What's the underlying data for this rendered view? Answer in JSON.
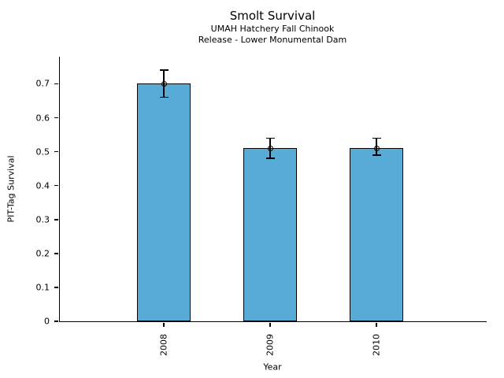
{
  "figure": {
    "background": "#ffffff"
  },
  "chart_data": {
    "type": "bar",
    "title": "Smolt Survival",
    "subtitle1": "UMAH Hatchery Fall Chinook",
    "subtitle2": "Release - Lower Monumental Dam",
    "xlabel": "Year",
    "ylabel": "PIT-Tag Survival",
    "categories": [
      "2008",
      "2009",
      "2010"
    ],
    "values": [
      0.7,
      0.51,
      0.51
    ],
    "error_low": [
      0.66,
      0.48,
      0.49
    ],
    "error_high": [
      0.74,
      0.54,
      0.54
    ],
    "yticks": [
      0,
      0.1,
      0.2,
      0.3,
      0.4,
      0.5,
      0.6,
      0.7
    ],
    "ytick_labels": [
      "0",
      "0.1",
      "0.2",
      "0.3",
      "0.4",
      "0.5",
      "0.6",
      "0.7"
    ],
    "ylim": [
      0,
      0.78
    ],
    "grid": false,
    "legend": null,
    "bar_color": "#58ABD6",
    "bar_edge_color": "#000000",
    "error_color": "#000000",
    "marker": "open-circle"
  }
}
